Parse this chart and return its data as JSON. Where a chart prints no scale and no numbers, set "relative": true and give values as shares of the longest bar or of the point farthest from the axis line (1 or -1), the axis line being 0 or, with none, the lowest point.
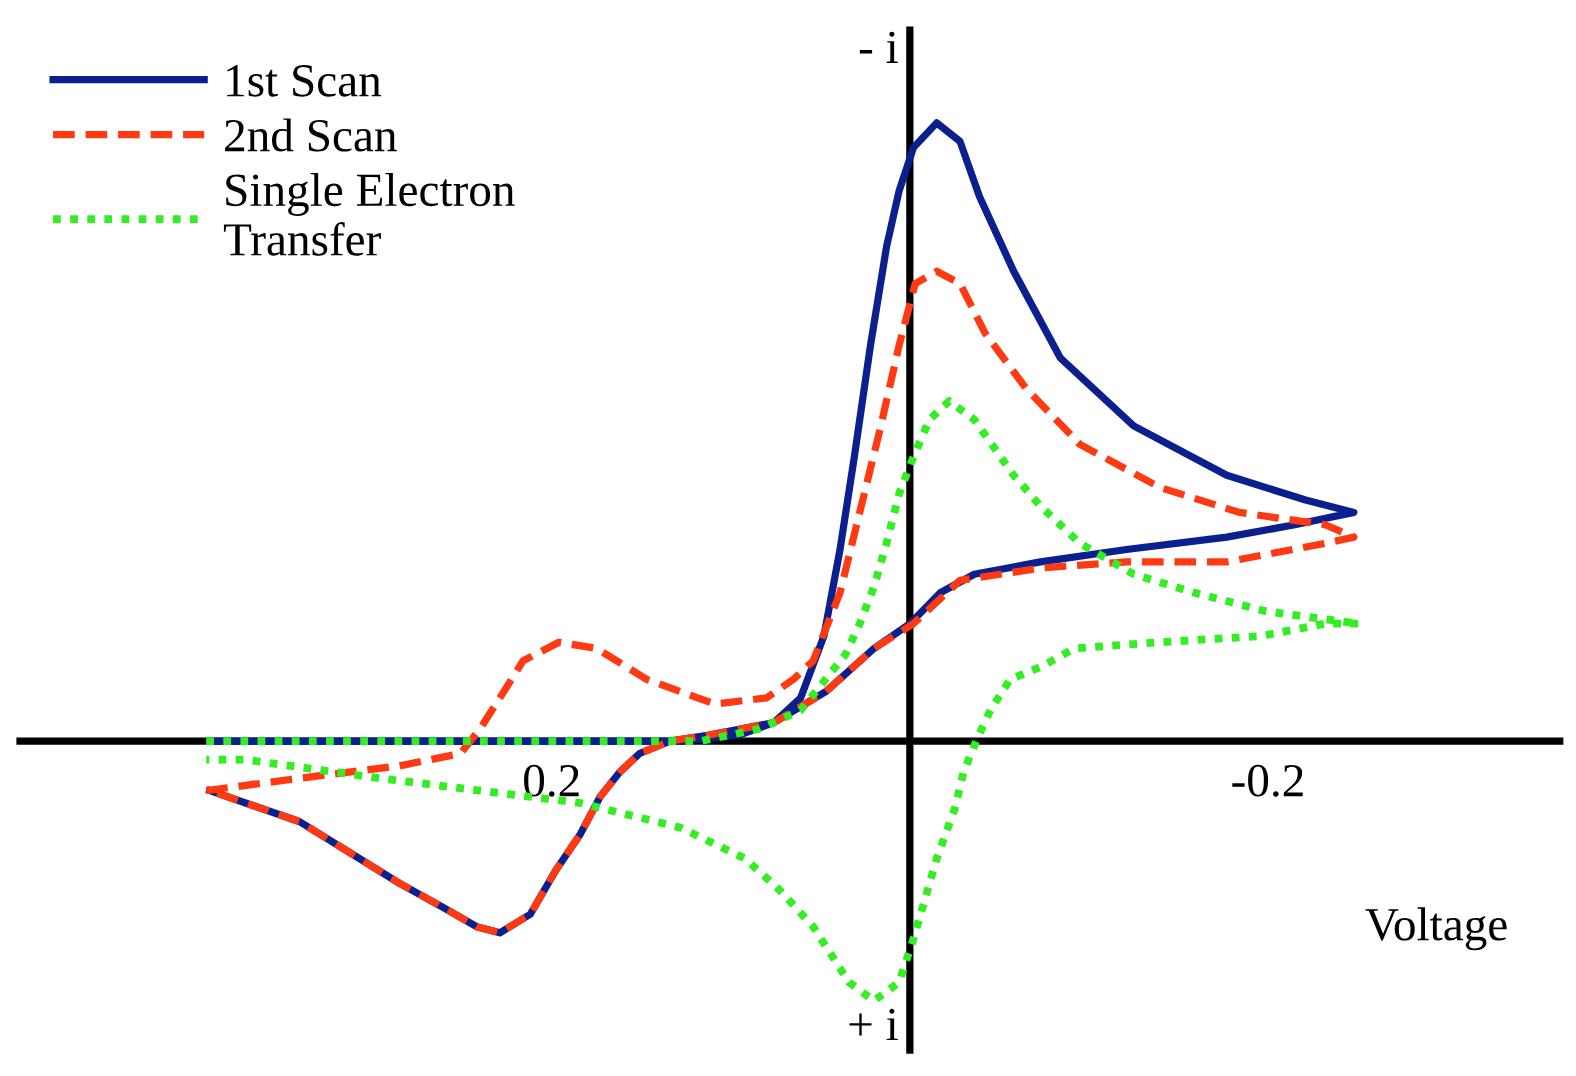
{
  "chart_data": {
    "type": "line",
    "relative": true,
    "xlabel": "Voltage",
    "annotations": [
      "- i",
      "+ i"
    ],
    "xlim": [
      0.497,
      -0.363
    ],
    "xticks": [
      0.2,
      -0.2
    ],
    "legend": "top left",
    "grid": false,
    "series": [
      {
        "name": "1st Scan",
        "color": "#0b1f8f",
        "line_style": "solid",
        "x": [
          0.391,
          0.285,
          0.173,
          0.128,
          0.095,
          0.076,
          0.061,
          0.048,
          0.039,
          0.031,
          0.022,
          0.013,
          0.006,
          -0.002,
          -0.015,
          -0.028,
          -0.039,
          -0.058,
          -0.084,
          -0.125,
          -0.177,
          -0.221,
          -0.248,
          -0.215,
          -0.177,
          -0.121,
          -0.073,
          -0.036,
          -0.017,
          0,
          0.02,
          0.047,
          0.076,
          0.112,
          0.134,
          0.151,
          0.162,
          0.173,
          0.184,
          0.198,
          0.212,
          0.229,
          0.242,
          0.26,
          0.285,
          0.313,
          0.341,
          0.371,
          0.391
        ],
        "values": [
          0,
          0,
          0,
          0.0,
          0.01,
          0.03,
          0.07,
          0.17,
          0.31,
          0.46,
          0.64,
          0.8,
          0.89,
          0.96,
          1.0,
          0.97,
          0.88,
          0.76,
          0.62,
          0.51,
          0.43,
          0.39,
          0.37,
          0.35,
          0.33,
          0.31,
          0.29,
          0.27,
          0.24,
          0.19,
          0.15,
          0.08,
          0.03,
          0.01,
          0,
          -0.02,
          -0.05,
          -0.09,
          -0.15,
          -0.21,
          -0.28,
          -0.31,
          -0.3,
          -0.27,
          -0.23,
          -0.18,
          -0.13,
          -0.1,
          -0.08
        ]
      },
      {
        "name": "2nd Scan",
        "color": "#ff3a12",
        "line_style": "dashed",
        "x": [
          0.393,
          0.341,
          0.285,
          0.251,
          0.24,
          0.229,
          0.216,
          0.196,
          0.175,
          0.147,
          0.109,
          0.08,
          0.065,
          0.054,
          0.039,
          0.028,
          0.017,
          0.006,
          -0.003,
          -0.015,
          -0.028,
          -0.042,
          -0.065,
          -0.095,
          -0.14,
          -0.184,
          -0.232,
          -0.248,
          -0.232,
          -0.177,
          -0.121,
          -0.073,
          -0.028,
          -0.002,
          0.02,
          0.047,
          0.076,
          0.112,
          0.134,
          0.151,
          0.162,
          0.173,
          0.184,
          0.198,
          0.212,
          0.229,
          0.242,
          0.26,
          0.285,
          0.313,
          0.341,
          0.371,
          0.391
        ],
        "values": [
          -0.08,
          -0.06,
          -0.04,
          -0.02,
          0.02,
          0.07,
          0.13,
          0.16,
          0.15,
          0.1,
          0.06,
          0.07,
          0.1,
          0.13,
          0.24,
          0.37,
          0.5,
          0.64,
          0.74,
          0.76,
          0.74,
          0.66,
          0.57,
          0.48,
          0.41,
          0.37,
          0.35,
          0.33,
          0.32,
          0.29,
          0.29,
          0.28,
          0.26,
          0.19,
          0.15,
          0.08,
          0.03,
          0.01,
          0,
          -0.02,
          -0.05,
          -0.09,
          -0.15,
          -0.21,
          -0.28,
          -0.31,
          -0.3,
          -0.27,
          -0.23,
          -0.18,
          -0.13,
          -0.1,
          -0.08
        ]
      },
      {
        "name": "Single Electron\nTransfer",
        "color": "#33ee22",
        "line_style": "dotted",
        "x": [
          0.393,
          0.285,
          0.173,
          0.117,
          0.084,
          0.061,
          0.036,
          0.028,
          0.02,
          0.013,
          0.006,
          -0.002,
          -0.011,
          -0.022,
          -0.036,
          -0.058,
          -0.073,
          -0.095,
          -0.125,
          -0.159,
          -0.199,
          -0.251,
          -0.232,
          -0.196,
          -0.14,
          -0.092,
          -0.073,
          -0.056,
          -0.045,
          -0.037,
          -0.03,
          -0.025,
          -0.015,
          -0.009,
          -0.002,
          0.006,
          0.02,
          0.034,
          0.054,
          0.073,
          0.092,
          0.128,
          0.184,
          0.296,
          0.371,
          0.393
        ],
        "values": [
          0,
          0,
          0,
          0.0,
          0.02,
          0.05,
          0.14,
          0.19,
          0.25,
          0.32,
          0.4,
          0.46,
          0.52,
          0.55,
          0.52,
          0.43,
          0.38,
          0.32,
          0.27,
          0.24,
          0.21,
          0.19,
          0.19,
          0.17,
          0.16,
          0.15,
          0.12,
          0.1,
          0.05,
          0.0,
          -0.05,
          -0.11,
          -0.19,
          -0.25,
          -0.32,
          -0.39,
          -0.42,
          -0.39,
          -0.3,
          -0.24,
          -0.19,
          -0.14,
          -0.1,
          -0.06,
          -0.03,
          -0.03
        ]
      }
    ]
  }
}
